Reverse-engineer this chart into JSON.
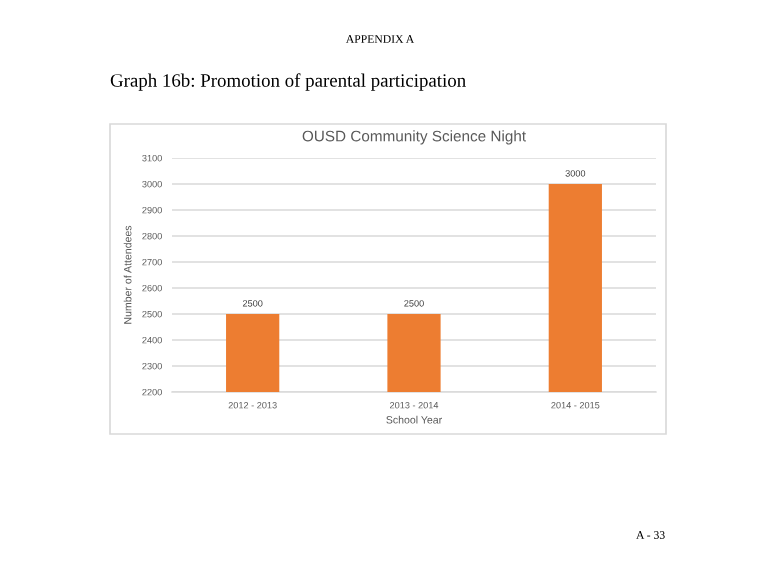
{
  "chart_data": {
    "type": "bar",
    "title": "OUSD Community Science Night",
    "xlabel": "School Year",
    "ylabel": "Number of Attendees",
    "categories": [
      "2012 - 2013",
      "2013 - 2014",
      "2014 - 2015"
    ],
    "values": [
      2500,
      2500,
      3000
    ],
    "color": "#ed7d31",
    "data_labels": true,
    "ylim": [
      2200,
      3100
    ],
    "yticks": [
      2200,
      2300,
      2400,
      2500,
      2600,
      2700,
      2800,
      2900,
      3000,
      3100
    ],
    "grid": "y",
    "legend": false,
    "annotations": [
      "APPENDIX A",
      "Graph 16b: Promotion of parental participation",
      "A - 33"
    ]
  }
}
